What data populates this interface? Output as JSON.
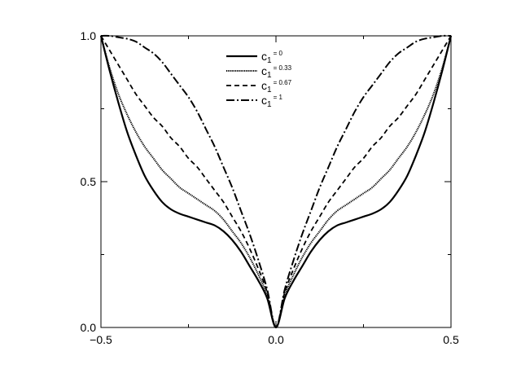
{
  "chart_data": {
    "type": "line",
    "title": "",
    "xlabel": "",
    "ylabel": "",
    "xlim": [
      -0.5,
      0.5
    ],
    "ylim": [
      0.0,
      1.0
    ],
    "xticks": [
      -0.5,
      0.0,
      0.5
    ],
    "xtick_labels": [
      "−0.5",
      "0.0",
      "0.5"
    ],
    "yticks": [
      0.0,
      0.5,
      1.0
    ],
    "ytick_labels": [
      "0.0",
      "0.5",
      "1.0"
    ],
    "grid": false,
    "legend_position": "top-center",
    "x": [
      0.0,
      0.025,
      0.05,
      0.075,
      0.1,
      0.125,
      0.15,
      0.175,
      0.2,
      0.225,
      0.25,
      0.275,
      0.3,
      0.325,
      0.35,
      0.375,
      0.4,
      0.425,
      0.45,
      0.475,
      0.5
    ],
    "series": [
      {
        "name": "c1 = 0",
        "symbol": "c",
        "subscript": "1",
        "superscript": "= 0",
        "dash": "solid",
        "values": [
          0.0,
          0.1,
          0.16,
          0.21,
          0.26,
          0.3,
          0.33,
          0.35,
          0.36,
          0.37,
          0.38,
          0.39,
          0.405,
          0.43,
          0.47,
          0.52,
          0.59,
          0.67,
          0.77,
          0.88,
          1.0
        ]
      },
      {
        "name": "c1 = 0.33",
        "symbol": "c",
        "subscript": "1",
        "superscript": "= 0.33",
        "dash": "dotted",
        "values": [
          0.0,
          0.11,
          0.18,
          0.24,
          0.29,
          0.33,
          0.37,
          0.4,
          0.42,
          0.44,
          0.46,
          0.48,
          0.51,
          0.54,
          0.58,
          0.62,
          0.67,
          0.73,
          0.8,
          0.89,
          1.0
        ]
      },
      {
        "name": "c1 = 0.67",
        "symbol": "c",
        "subscript": "1",
        "superscript": "= 0.67",
        "dash": "dashed",
        "values": [
          0.0,
          0.12,
          0.2,
          0.27,
          0.33,
          0.38,
          0.43,
          0.47,
          0.51,
          0.55,
          0.58,
          0.62,
          0.65,
          0.69,
          0.72,
          0.76,
          0.8,
          0.85,
          0.9,
          0.95,
          1.0
        ]
      },
      {
        "name": "c1 = 1",
        "symbol": "c",
        "subscript": "1",
        "superscript": "= 1",
        "dash": "dash-dot",
        "values": [
          0.0,
          0.13,
          0.23,
          0.32,
          0.4,
          0.48,
          0.55,
          0.62,
          0.68,
          0.74,
          0.79,
          0.83,
          0.87,
          0.91,
          0.94,
          0.96,
          0.98,
          0.99,
          0.995,
          1.0,
          1.0
        ]
      }
    ],
    "colors": {
      "line": "#000000",
      "axes": "#000000",
      "background": "#ffffff"
    }
  }
}
